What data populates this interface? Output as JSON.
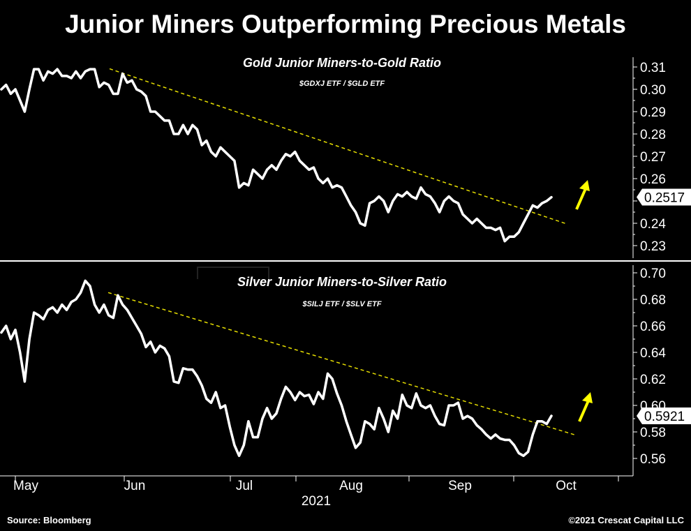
{
  "title": "Junior Miners Outperforming Precious Metals",
  "footer": {
    "source": "Source: Bloomberg",
    "copyright": "©2021 Crescat Capital LLC"
  },
  "colors": {
    "line": "#ffffff",
    "trend": "#e8e000",
    "arrow": "#ffff00",
    "background": "#000000"
  },
  "chart_data": [
    {
      "type": "line",
      "title": "Gold Junior Miners-to-Gold Ratio",
      "subtitle": "$GDXJ ETF / $GLD ETF",
      "ylim": [
        0.225,
        0.315
      ],
      "yticks": [
        0.23,
        0.24,
        0.25,
        0.26,
        0.27,
        0.28,
        0.29,
        0.3,
        0.31
      ],
      "ytick_labels": [
        "0.23",
        "0.24",
        "",
        "0.26",
        "0.27",
        "0.28",
        "0.29",
        "0.30",
        "0.31"
      ],
      "last_value_label": "0.2517",
      "series": [
        {
          "name": "GDXJ/GLD",
          "values": [
            0.3,
            0.302,
            0.298,
            0.3,
            0.295,
            0.29,
            0.3,
            0.309,
            0.309,
            0.304,
            0.308,
            0.307,
            0.309,
            0.306,
            0.306,
            0.305,
            0.308,
            0.305,
            0.308,
            0.309,
            0.309,
            0.301,
            0.303,
            0.302,
            0.298,
            0.298,
            0.307,
            0.303,
            0.304,
            0.3,
            0.299,
            0.297,
            0.29,
            0.29,
            0.288,
            0.286,
            0.286,
            0.28,
            0.28,
            0.284,
            0.28,
            0.284,
            0.282,
            0.275,
            0.277,
            0.272,
            0.27,
            0.274,
            0.272,
            0.27,
            0.268,
            0.256,
            0.258,
            0.257,
            0.264,
            0.262,
            0.26,
            0.264,
            0.266,
            0.264,
            0.268,
            0.271,
            0.27,
            0.272,
            0.268,
            0.266,
            0.264,
            0.265,
            0.26,
            0.258,
            0.26,
            0.256,
            0.257,
            0.256,
            0.252,
            0.248,
            0.245,
            0.24,
            0.239,
            0.249,
            0.25,
            0.252,
            0.25,
            0.245,
            0.25,
            0.253,
            0.252,
            0.254,
            0.252,
            0.251,
            0.256,
            0.253,
            0.252,
            0.249,
            0.245,
            0.25,
            0.252,
            0.25,
            0.249,
            0.244,
            0.242,
            0.24,
            0.242,
            0.24,
            0.238,
            0.238,
            0.237,
            0.238,
            0.232,
            0.234,
            0.234,
            0.236,
            0.24,
            0.244,
            0.248,
            0.247,
            0.249,
            0.25,
            0.2517
          ]
        }
      ],
      "trendline": {
        "start": [
          0.3092
        ],
        "end": [
          0.2397
        ]
      }
    },
    {
      "type": "line",
      "title": "Silver Junior Miners-to-Silver Ratio",
      "subtitle": "$SILJ ETF / $SLV ETF",
      "ylim": [
        0.548,
        0.704
      ],
      "yticks": [
        0.56,
        0.58,
        0.6,
        0.62,
        0.64,
        0.66,
        0.68,
        0.7
      ],
      "ytick_labels": [
        "0.56",
        "0.58",
        "0.60",
        "0.62",
        "0.64",
        "0.66",
        "0.68",
        "0.70"
      ],
      "last_value_label": "0.5921",
      "series": [
        {
          "name": "SILJ/SLV",
          "values": [
            0.655,
            0.66,
            0.65,
            0.657,
            0.64,
            0.618,
            0.65,
            0.67,
            0.668,
            0.665,
            0.672,
            0.674,
            0.67,
            0.676,
            0.672,
            0.678,
            0.68,
            0.685,
            0.694,
            0.69,
            0.676,
            0.67,
            0.676,
            0.668,
            0.666,
            0.683,
            0.676,
            0.672,
            0.666,
            0.66,
            0.654,
            0.644,
            0.648,
            0.64,
            0.645,
            0.643,
            0.637,
            0.618,
            0.617,
            0.628,
            0.627,
            0.627,
            0.622,
            0.615,
            0.605,
            0.602,
            0.61,
            0.598,
            0.6,
            0.584,
            0.57,
            0.562,
            0.57,
            0.588,
            0.576,
            0.576,
            0.59,
            0.598,
            0.59,
            0.594,
            0.605,
            0.614,
            0.61,
            0.604,
            0.61,
            0.607,
            0.608,
            0.601,
            0.61,
            0.605,
            0.624,
            0.62,
            0.609,
            0.6,
            0.588,
            0.578,
            0.568,
            0.572,
            0.588,
            0.586,
            0.582,
            0.598,
            0.59,
            0.58,
            0.596,
            0.59,
            0.608,
            0.6,
            0.598,
            0.609,
            0.6,
            0.598,
            0.6,
            0.592,
            0.586,
            0.585,
            0.6,
            0.6,
            0.602,
            0.59,
            0.592,
            0.59,
            0.585,
            0.582,
            0.578,
            0.575,
            0.578,
            0.575,
            0.574,
            0.574,
            0.57,
            0.564,
            0.562,
            0.565,
            0.578,
            0.588,
            0.588,
            0.586,
            0.5921
          ]
        }
      ],
      "trendline": {
        "start": [
          0.6851
        ],
        "end": [
          0.5774
        ]
      }
    }
  ],
  "xaxis": {
    "months": [
      "May",
      "Jun",
      "Jul",
      "Aug",
      "Sep",
      "Oct"
    ],
    "year_label": "2021"
  }
}
